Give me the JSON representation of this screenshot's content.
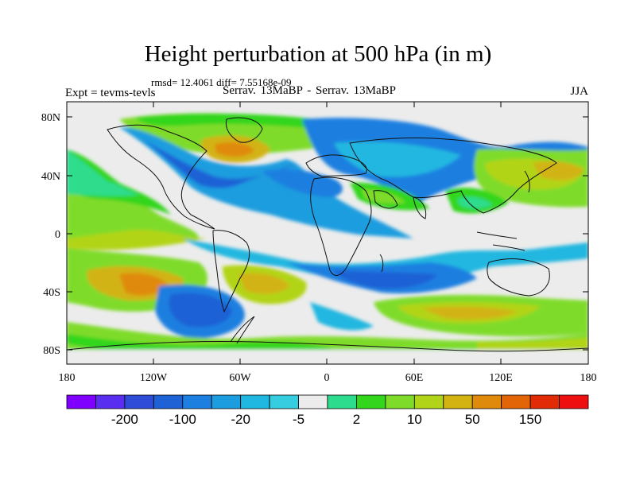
{
  "title": "Height perturbation at 500 hPa (in m)",
  "stats": "rmsd= 12.4061 diff= 7.55168e-09",
  "expt_label": "Expt = tevms-tevls",
  "comparison_label": "Serrav.  13MaBP - Serrav.  13MaBP",
  "season": "JJA",
  "lat_ticks": [
    "80N",
    "40N",
    "0",
    "40S",
    "80S"
  ],
  "lon_ticks": [
    "180",
    "120W",
    "60W",
    "0",
    "60E",
    "120E",
    "180"
  ],
  "colorbar": {
    "colors": [
      "#7f00ff",
      "#5a2ef0",
      "#2f4cd8",
      "#1e62d6",
      "#1d7fe0",
      "#1b9ddf",
      "#20b7e0",
      "#36cde0",
      "#ececec",
      "#2ddc8c",
      "#33d61c",
      "#7fdb2a",
      "#b2d418",
      "#d2b312",
      "#e08a0b",
      "#e26608",
      "#e12a06",
      "#ee1010"
    ],
    "labels": [
      "-200",
      "-100",
      "-20",
      "-5",
      "2",
      "10",
      "50",
      "150"
    ]
  }
}
